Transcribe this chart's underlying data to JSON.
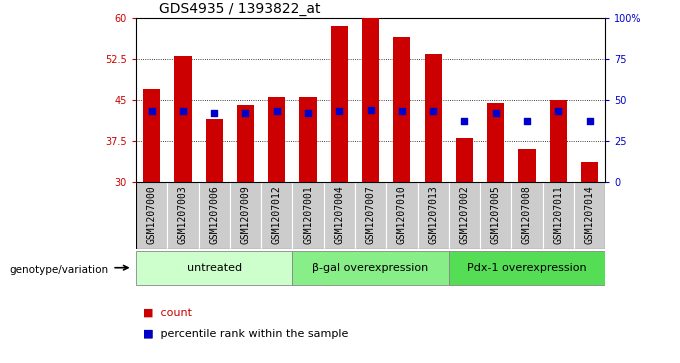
{
  "title": "GDS4935 / 1393822_at",
  "samples": [
    "GSM1207000",
    "GSM1207003",
    "GSM1207006",
    "GSM1207009",
    "GSM1207012",
    "GSM1207001",
    "GSM1207004",
    "GSM1207007",
    "GSM1207010",
    "GSM1207013",
    "GSM1207002",
    "GSM1207005",
    "GSM1207008",
    "GSM1207011",
    "GSM1207014"
  ],
  "counts": [
    47.0,
    53.0,
    41.5,
    44.0,
    45.5,
    45.5,
    58.5,
    60.0,
    56.5,
    53.5,
    38.0,
    44.5,
    36.0,
    45.0,
    33.5
  ],
  "percentile_ranks": [
    43,
    43,
    42,
    42,
    43,
    42,
    43,
    44,
    43,
    43,
    37,
    42,
    37,
    43,
    37
  ],
  "groups": [
    {
      "label": "untreated",
      "start": 0,
      "end": 5,
      "color": "#ccffcc"
    },
    {
      "label": "β-gal overexpression",
      "start": 5,
      "end": 10,
      "color": "#88ee88"
    },
    {
      "label": "Pdx-1 overexpression",
      "start": 10,
      "end": 15,
      "color": "#44dd44"
    }
  ],
  "ylim_left": [
    30,
    60
  ],
  "yticks_left": [
    30,
    37.5,
    45,
    52.5,
    60
  ],
  "ylim_right": [
    0,
    100
  ],
  "yticks_right": [
    0,
    25,
    50,
    75,
    100
  ],
  "bar_color": "#cc0000",
  "dot_color": "#0000cc",
  "bar_width": 0.55,
  "bar_bg_color": "#cccccc",
  "xlabel_color": "#cc0000",
  "ylabel_right_color": "#0000cc",
  "title_fontsize": 10,
  "tick_fontsize": 7,
  "label_fontsize": 8,
  "legend_fontsize": 8
}
